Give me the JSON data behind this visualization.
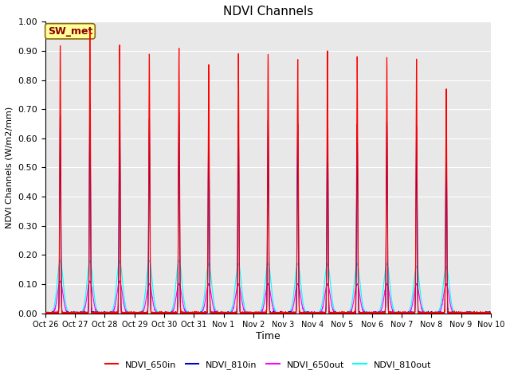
{
  "title": "NDVI Channels",
  "xlabel": "Time",
  "ylabel": "NDVI Channels (W/m2/mm)",
  "ylim": [
    0.0,
    1.0
  ],
  "yticks": [
    0.0,
    0.1,
    0.2,
    0.3,
    0.4,
    0.5,
    0.6,
    0.7,
    0.8,
    0.9,
    1.0
  ],
  "xtick_labels": [
    "Oct 26",
    "Oct 27",
    "Oct 28",
    "Oct 29",
    "Oct 30",
    "Oct 31",
    "Nov 1",
    "Nov 2",
    "Nov 3",
    "Nov 4",
    "Nov 5",
    "Nov 6",
    "Nov 7",
    "Nov 8",
    "Nov 9",
    "Nov 10"
  ],
  "colors": {
    "NDVI_650in": "#ff0000",
    "NDVI_810in": "#0000cc",
    "NDVI_650out": "#ff00ff",
    "NDVI_810out": "#00ffff"
  },
  "legend_label": "SW_met",
  "background_color": "#e8e8e8",
  "n_days": 15,
  "peaks_650in": [
    0.92,
    0.97,
    0.92,
    0.89,
    0.91,
    0.85,
    0.89,
    0.89,
    0.87,
    0.9,
    0.88,
    0.88,
    0.87,
    0.77,
    0.0
  ],
  "peaks_810in": [
    0.68,
    0.72,
    0.68,
    0.67,
    0.69,
    0.65,
    0.66,
    0.66,
    0.65,
    0.68,
    0.65,
    0.66,
    0.64,
    0.61,
    0.0
  ],
  "peaks_650out": [
    0.11,
    0.11,
    0.11,
    0.1,
    0.1,
    0.1,
    0.1,
    0.1,
    0.1,
    0.1,
    0.1,
    0.1,
    0.1,
    0.1,
    0.0
  ],
  "peaks_810out": [
    0.18,
    0.18,
    0.18,
    0.18,
    0.18,
    0.17,
    0.17,
    0.17,
    0.17,
    0.17,
    0.17,
    0.17,
    0.16,
    0.16,
    0.0
  ],
  "figsize": [
    6.4,
    4.8
  ],
  "dpi": 100
}
